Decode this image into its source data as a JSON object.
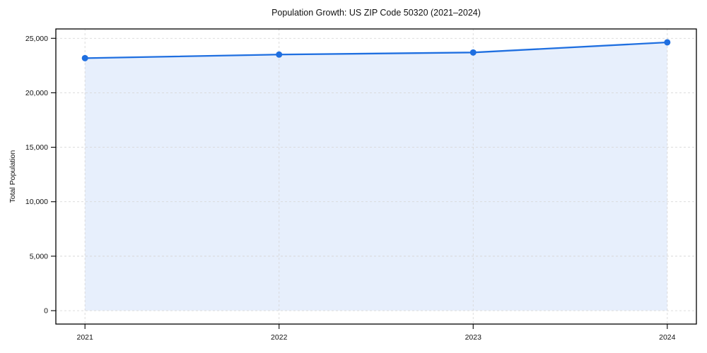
{
  "chart_data": {
    "type": "line",
    "title": "Population Growth: US ZIP Code 50320 (2021–2024)",
    "xlabel": "",
    "ylabel": "Total Population",
    "x": [
      2021,
      2022,
      2023,
      2024
    ],
    "series": [
      {
        "name": "Total Population",
        "values": [
          23180,
          23510,
          23700,
          24630
        ]
      }
    ],
    "yticks": [
      0,
      5000,
      10000,
      15000,
      20000,
      25000
    ],
    "ytick_labels": [
      "0",
      "5,000",
      "10,000",
      "15,000",
      "20,000",
      "25,000"
    ],
    "xtick_labels": [
      "2021",
      "2022",
      "2023",
      "2024"
    ],
    "ylim": [
      -1230,
      25860
    ],
    "xlim": [
      2020.85,
      2024.15
    ],
    "grid": "both-dashed",
    "legend": "none",
    "area_fill": true,
    "markers": true,
    "colors": {
      "line": "#1f6fe0",
      "marker": "#1f6fe0",
      "area_fill": "#e7effc",
      "grid": "#d8d8d8",
      "spine": "#000000",
      "text": "#111111",
      "background": "#ffffff"
    }
  }
}
